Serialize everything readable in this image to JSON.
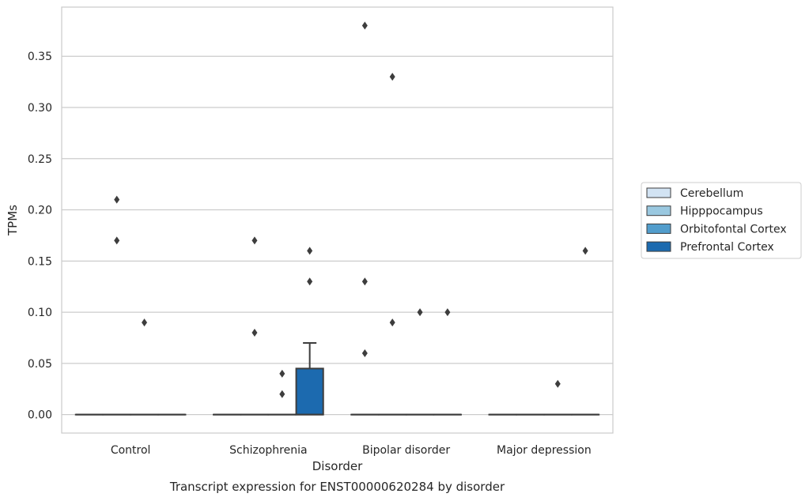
{
  "chart_data": {
    "type": "box",
    "title": "",
    "caption": "Transcript expression for ENST00000620284 by disorder",
    "xlabel": "Disorder",
    "ylabel": "TPMs",
    "ylim": [
      -0.018,
      0.398
    ],
    "yticks": [
      "0.00",
      "0.05",
      "0.10",
      "0.15",
      "0.20",
      "0.25",
      "0.30",
      "0.35"
    ],
    "grid": "horizontal",
    "legend_position": "right",
    "categories": [
      "Control",
      "Schizophrenia",
      "Bipolar disorder",
      "Major depression"
    ],
    "series": [
      {
        "name": "Cerebellum",
        "color": "#d2e3f3",
        "boxes": [
          {
            "category": "Control",
            "q1": 0,
            "median": 0,
            "q3": 0,
            "whisker_low": 0,
            "whisker_high": 0,
            "outliers": []
          },
          {
            "category": "Schizophrenia",
            "q1": 0,
            "median": 0,
            "q3": 0,
            "whisker_low": 0,
            "whisker_high": 0,
            "outliers": []
          },
          {
            "category": "Bipolar disorder",
            "q1": 0,
            "median": 0,
            "q3": 0,
            "whisker_low": 0,
            "whisker_high": 0,
            "outliers": [
              0.38,
              0.13,
              0.06
            ]
          },
          {
            "category": "Major depression",
            "q1": 0,
            "median": 0,
            "q3": 0,
            "whisker_low": 0,
            "whisker_high": 0,
            "outliers": []
          }
        ]
      },
      {
        "name": "Hipppocampus",
        "color": "#9ac8e0",
        "boxes": [
          {
            "category": "Control",
            "q1": 0,
            "median": 0,
            "q3": 0,
            "whisker_low": 0,
            "whisker_high": 0,
            "outliers": [
              0.21,
              0.17
            ]
          },
          {
            "category": "Schizophrenia",
            "q1": 0,
            "median": 0,
            "q3": 0,
            "whisker_low": 0,
            "whisker_high": 0,
            "outliers": [
              0.17,
              0.08
            ]
          },
          {
            "category": "Bipolar disorder",
            "q1": 0,
            "median": 0,
            "q3": 0,
            "whisker_low": 0,
            "whisker_high": 0,
            "outliers": [
              0.33,
              0.09
            ]
          },
          {
            "category": "Major depression",
            "q1": 0,
            "median": 0,
            "q3": 0,
            "whisker_low": 0,
            "whisker_high": 0,
            "outliers": []
          }
        ]
      },
      {
        "name": "Orbitofontal Cortex",
        "color": "#529dcc",
        "boxes": [
          {
            "category": "Control",
            "q1": 0,
            "median": 0,
            "q3": 0,
            "whisker_low": 0,
            "whisker_high": 0,
            "outliers": [
              0.09
            ]
          },
          {
            "category": "Schizophrenia",
            "q1": 0,
            "median": 0,
            "q3": 0,
            "whisker_low": 0,
            "whisker_high": 0,
            "outliers": [
              0.04,
              0.02
            ]
          },
          {
            "category": "Bipolar disorder",
            "q1": 0,
            "median": 0,
            "q3": 0,
            "whisker_low": 0,
            "whisker_high": 0,
            "outliers": [
              0.1
            ]
          },
          {
            "category": "Major depression",
            "q1": 0,
            "median": 0,
            "q3": 0,
            "whisker_low": 0,
            "whisker_high": 0,
            "outliers": [
              0.03
            ]
          }
        ]
      },
      {
        "name": "Prefrontal Cortex",
        "color": "#1c6aaf",
        "boxes": [
          {
            "category": "Control",
            "q1": 0,
            "median": 0,
            "q3": 0,
            "whisker_low": 0,
            "whisker_high": 0,
            "outliers": []
          },
          {
            "category": "Schizophrenia",
            "q1": 0,
            "median": 0,
            "q3": 0.045,
            "whisker_low": 0,
            "whisker_high": 0.07,
            "outliers": [
              0.16,
              0.13
            ]
          },
          {
            "category": "Bipolar disorder",
            "q1": 0,
            "median": 0,
            "q3": 0,
            "whisker_low": 0,
            "whisker_high": 0,
            "outliers": [
              0.1
            ]
          },
          {
            "category": "Major depression",
            "q1": 0,
            "median": 0,
            "q3": 0,
            "whisker_low": 0,
            "whisker_high": 0,
            "outliers": [
              0.16
            ]
          }
        ]
      }
    ]
  }
}
